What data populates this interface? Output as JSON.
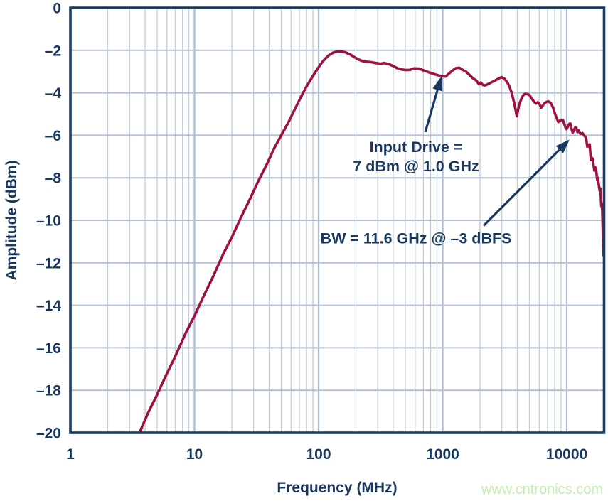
{
  "figure": {
    "watermark": "www.cntronics.com",
    "colors": {
      "curve": "#9e1140",
      "axis_frame": "#1c3b60",
      "text": "#18375f",
      "grid_minor": "#c0cddb",
      "grid_major": "#a9bccf",
      "grid_horizontal": "#b3c2d4",
      "annotation_arrow": "#18375f",
      "watermark": "#c6eab2",
      "background": "#ffffff"
    }
  },
  "chart_data": {
    "type": "line",
    "title": "",
    "xlabel": "Frequency (MHz)",
    "ylabel": "Amplitude (dBm)",
    "x_scale": "log",
    "xlim": [
      1,
      20000
    ],
    "ylim": [
      -20,
      0
    ],
    "grid": true,
    "legend": "none",
    "x_ticks": [
      {
        "value": 1,
        "label": "1"
      },
      {
        "value": 10,
        "label": "10"
      },
      {
        "value": 100,
        "label": "100"
      },
      {
        "value": 1000,
        "label": "1000"
      },
      {
        "value": 10000,
        "label": "10000"
      }
    ],
    "y_ticks": [
      {
        "value": 0,
        "label": "0"
      },
      {
        "value": -2,
        "label": "–2"
      },
      {
        "value": -4,
        "label": "–4"
      },
      {
        "value": -6,
        "label": "–6"
      },
      {
        "value": -8,
        "label": "–8"
      },
      {
        "value": -10,
        "label": "–10"
      },
      {
        "value": -12,
        "label": "–12"
      },
      {
        "value": -14,
        "label": "–14"
      },
      {
        "value": -16,
        "label": "–16"
      },
      {
        "value": -18,
        "label": "–18"
      },
      {
        "value": -20,
        "label": "–20"
      }
    ],
    "series": [
      {
        "name": "amplitude-response",
        "color": "#9e1140",
        "points_format": [
          "frequency_mhz",
          "amplitude_dbm"
        ],
        "points": [
          [
            3.6,
            -20
          ],
          [
            4.2,
            -19.1
          ],
          [
            5,
            -18.2
          ],
          [
            6,
            -17.2
          ],
          [
            7,
            -16.4
          ],
          [
            8.5,
            -15.3
          ],
          [
            10,
            -14.5
          ],
          [
            12,
            -13.5
          ],
          [
            14,
            -12.7
          ],
          [
            17,
            -11.6
          ],
          [
            20,
            -10.8
          ],
          [
            24,
            -9.8
          ],
          [
            28,
            -9.0
          ],
          [
            33,
            -8.1
          ],
          [
            38,
            -7.4
          ],
          [
            44,
            -6.6
          ],
          [
            50,
            -6.0
          ],
          [
            57,
            -5.4
          ],
          [
            64,
            -4.8
          ],
          [
            72,
            -4.2
          ],
          [
            80,
            -3.7
          ],
          [
            88,
            -3.3
          ],
          [
            96,
            -2.95
          ],
          [
            104,
            -2.65
          ],
          [
            112,
            -2.42
          ],
          [
            120,
            -2.25
          ],
          [
            130,
            -2.12
          ],
          [
            140,
            -2.06
          ],
          [
            152,
            -2.05
          ],
          [
            165,
            -2.1
          ],
          [
            178,
            -2.18
          ],
          [
            192,
            -2.3
          ],
          [
            208,
            -2.42
          ],
          [
            225,
            -2.5
          ],
          [
            245,
            -2.54
          ],
          [
            265,
            -2.56
          ],
          [
            290,
            -2.6
          ],
          [
            315,
            -2.63
          ],
          [
            340,
            -2.6
          ],
          [
            368,
            -2.65
          ],
          [
            398,
            -2.74
          ],
          [
            430,
            -2.84
          ],
          [
            465,
            -2.9
          ],
          [
            505,
            -2.93
          ],
          [
            545,
            -2.92
          ],
          [
            590,
            -2.85
          ],
          [
            640,
            -2.86
          ],
          [
            690,
            -2.93
          ],
          [
            745,
            -3.0
          ],
          [
            805,
            -3.07
          ],
          [
            865,
            -3.13
          ],
          [
            930,
            -3.18
          ],
          [
            1000,
            -3.22
          ],
          [
            1060,
            -3.23
          ],
          [
            1120,
            -3.1
          ],
          [
            1200,
            -2.95
          ],
          [
            1280,
            -2.84
          ],
          [
            1360,
            -2.82
          ],
          [
            1450,
            -2.92
          ],
          [
            1540,
            -3.0
          ],
          [
            1640,
            -3.15
          ],
          [
            1740,
            -3.3
          ],
          [
            1870,
            -3.42
          ],
          [
            1960,
            -3.6
          ],
          [
            2030,
            -3.52
          ],
          [
            2100,
            -3.62
          ],
          [
            2180,
            -3.66
          ],
          [
            2300,
            -3.6
          ],
          [
            2450,
            -3.52
          ],
          [
            2600,
            -3.44
          ],
          [
            2800,
            -3.34
          ],
          [
            2990,
            -3.26
          ],
          [
            3150,
            -3.34
          ],
          [
            3300,
            -3.48
          ],
          [
            3450,
            -3.7
          ],
          [
            3600,
            -4.0
          ],
          [
            3780,
            -4.5
          ],
          [
            3960,
            -5.1
          ],
          [
            4140,
            -4.55
          ],
          [
            4300,
            -4.3
          ],
          [
            4450,
            -4.12
          ],
          [
            4600,
            -4.05
          ],
          [
            4800,
            -4.06
          ],
          [
            5000,
            -4.1
          ],
          [
            5200,
            -4.25
          ],
          [
            5450,
            -4.42
          ],
          [
            5650,
            -4.5
          ],
          [
            5850,
            -4.44
          ],
          [
            6050,
            -4.55
          ],
          [
            6230,
            -4.7
          ],
          [
            6450,
            -4.58
          ],
          [
            6650,
            -4.48
          ],
          [
            6900,
            -4.42
          ],
          [
            7100,
            -4.4
          ],
          [
            7300,
            -4.44
          ],
          [
            7500,
            -4.52
          ],
          [
            7750,
            -4.7
          ],
          [
            8000,
            -4.95
          ],
          [
            8300,
            -5.2
          ],
          [
            8560,
            -5.37
          ],
          [
            8800,
            -5.32
          ],
          [
            9050,
            -5.27
          ],
          [
            9330,
            -5.28
          ],
          [
            9600,
            -5.5
          ],
          [
            9800,
            -5.65
          ],
          [
            9970,
            -5.71
          ],
          [
            10200,
            -5.6
          ],
          [
            10500,
            -5.45
          ],
          [
            10720,
            -5.45
          ],
          [
            10950,
            -5.7
          ],
          [
            11160,
            -5.88
          ],
          [
            11400,
            -5.78
          ],
          [
            11700,
            -5.63
          ],
          [
            11950,
            -5.65
          ],
          [
            12200,
            -5.85
          ],
          [
            12500,
            -5.78
          ],
          [
            12800,
            -5.9
          ],
          [
            13100,
            -5.93
          ],
          [
            13400,
            -5.9
          ],
          [
            13700,
            -5.99
          ],
          [
            14000,
            -6.05
          ],
          [
            14300,
            -6.1
          ],
          [
            14650,
            -6.54
          ],
          [
            15000,
            -6.45
          ],
          [
            15300,
            -6.43
          ],
          [
            15650,
            -7.16
          ],
          [
            15900,
            -7.05
          ],
          [
            16200,
            -7.1
          ],
          [
            16450,
            -7.4
          ],
          [
            16700,
            -7.66
          ],
          [
            16950,
            -7.5
          ],
          [
            17200,
            -7.55
          ],
          [
            17600,
            -8.1
          ],
          [
            17800,
            -8.0
          ],
          [
            18100,
            -8.3
          ],
          [
            18400,
            -8.6
          ],
          [
            18700,
            -8.5
          ],
          [
            19000,
            -9.33
          ],
          [
            19200,
            -9.22
          ],
          [
            19350,
            -9.6
          ],
          [
            19500,
            -10.4
          ],
          [
            19650,
            -11.0
          ],
          [
            19800,
            -11.65
          ]
        ]
      }
    ],
    "annotations": [
      {
        "id": "input-drive",
        "lines": [
          "Input Drive =",
          "7 dBm @ 1.0 GHz"
        ],
        "arrow": {
          "from": {
            "f": 724,
            "amp": -5.85
          },
          "to": {
            "f": 980,
            "amp": -3.22
          }
        }
      },
      {
        "id": "bandwidth",
        "lines": [
          "BW = 11.6 GHz @ –3 dBFS"
        ],
        "arrow": {
          "from": {
            "f": 2140,
            "amp": -10.25
          },
          "to": {
            "f": 10550,
            "amp": -6.2
          }
        }
      }
    ]
  }
}
